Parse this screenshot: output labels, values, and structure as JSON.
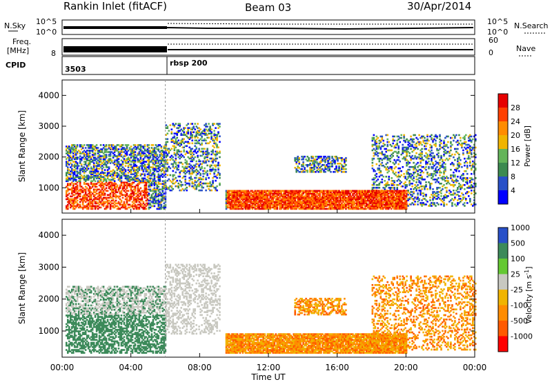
{
  "header": {
    "station": "Rankin Inlet (fitACF)",
    "beam": "Beam 03",
    "date": "30/Apr/2014"
  },
  "aux_labels": {
    "nsky": "N.Sky",
    "nsky_lo": "10^0",
    "nsky_hi": "10^5",
    "nsearch": "N.Search",
    "nsearch_lo": "10^0",
    "nsearch_hi": "10^5",
    "freq": "Freq.",
    "freq_unit": "[MHz]",
    "freq_lo": "8",
    "nave": "Nave",
    "nave_lo": "0",
    "nave_hi": "60",
    "cpid": "CPID",
    "cpid_1": "3503",
    "cpid_2": "rbsp 200"
  },
  "colors": {
    "power": [
      "#0000ff",
      "#2850c8",
      "#3c8a50",
      "#64b45a",
      "#f0b400",
      "#ff8c00",
      "#ff4000",
      "#e60000"
    ],
    "velocity": [
      "#ff0000",
      "#ff5a00",
      "#ff8c00",
      "#f0b400",
      "#c8c8c0",
      "#64c832",
      "#3c8a5a",
      "#2850c8"
    ]
  },
  "chart_data": [
    {
      "type": "heatmap",
      "name": "power",
      "ylabel": "Slant Range [km]",
      "xlim": [
        0,
        24
      ],
      "ylim": [
        180,
        4500
      ],
      "yticks": [
        "1000",
        "2000",
        "3000",
        "4000"
      ],
      "xticks": [
        "00:00",
        "04:00",
        "08:00",
        "12:00",
        "16:00",
        "20:00",
        "00:00"
      ],
      "colorbar": {
        "label": "Power [dB]",
        "ticks": [
          "4",
          "8",
          "12",
          "16",
          "20",
          "24",
          "28"
        ]
      }
    },
    {
      "type": "heatmap",
      "name": "velocity",
      "ylabel": "Slant Range [km]",
      "xlabel": "Time UT",
      "xlim": [
        0,
        24
      ],
      "ylim": [
        180,
        4500
      ],
      "yticks": [
        "1000",
        "2000",
        "3000",
        "4000"
      ],
      "xticks": [
        "00:00",
        "04:00",
        "08:00",
        "12:00",
        "16:00",
        "20:00",
        "00:00"
      ],
      "colorbar": {
        "label": "Velocity [m s^-1]",
        "ticks": [
          "-1000",
          "-500",
          "-100",
          "-25",
          "25",
          "100",
          "500",
          "1000"
        ]
      }
    }
  ]
}
